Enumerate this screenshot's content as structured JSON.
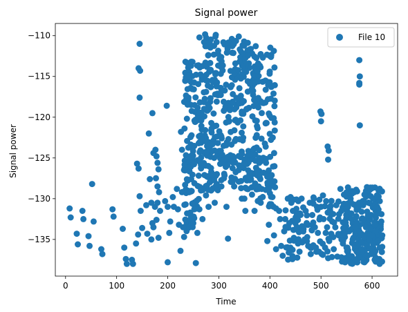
{
  "chart_data": {
    "type": "scatter",
    "title": "Signal power",
    "xlabel": "Time",
    "ylabel": "Signal power",
    "xlim": [
      -20,
      650
    ],
    "ylim": [
      -139.5,
      -108.5
    ],
    "xticks": [
      0,
      100,
      200,
      300,
      400,
      500,
      600
    ],
    "yticks": [
      -135,
      -130,
      -125,
      -120,
      -115,
      -110
    ],
    "grid": false,
    "legend_position": "top-right",
    "marker_color": "#1f77b4",
    "series": [
      {
        "name": "File 10",
        "points": [
          [
            8,
            -131.2
          ],
          [
            10,
            -132.3
          ],
          [
            22,
            -134.3
          ],
          [
            24,
            -135.6
          ],
          [
            33,
            -131.5
          ],
          [
            35,
            -132.5
          ],
          [
            45,
            -134.6
          ],
          [
            47,
            -135.8
          ],
          [
            52,
            -128.2
          ],
          [
            55,
            -132.8
          ],
          [
            70,
            -136.2
          ],
          [
            72,
            -136.8
          ],
          [
            92,
            -131.3
          ],
          [
            94,
            -132.2
          ],
          [
            112,
            -133.7
          ],
          [
            115,
            -136.0
          ],
          [
            118,
            -137.4
          ],
          [
            120,
            -138.0
          ],
          [
            130,
            -137.5
          ],
          [
            132,
            -138.0
          ],
          [
            145,
            -111.0
          ],
          [
            143,
            -114.0
          ],
          [
            146,
            -114.3
          ],
          [
            145,
            -117.6
          ],
          [
            140,
            -125.7
          ],
          [
            143,
            -126.3
          ],
          [
            145,
            -129.7
          ],
          [
            147,
            -131.5
          ],
          [
            138,
            -135.5
          ],
          [
            142,
            -134.4
          ],
          [
            150,
            -133.6
          ],
          [
            158,
            -130.8
          ],
          [
            160,
            -134.3
          ],
          [
            163,
            -122.0
          ],
          [
            165,
            -127.6
          ],
          [
            168,
            -130.5
          ],
          [
            170,
            -119.5
          ],
          [
            172,
            -124.4
          ],
          [
            176,
            -124.0
          ],
          [
            178,
            -124.8
          ],
          [
            180,
            -125.6
          ],
          [
            182,
            -126.4
          ],
          [
            177,
            -127.5
          ],
          [
            180,
            -128.5
          ],
          [
            183,
            -129.2
          ],
          [
            175,
            -131.0
          ],
          [
            170,
            -133.0
          ],
          [
            168,
            -135.0
          ],
          [
            172,
            -133.5
          ],
          [
            178,
            -132.6
          ],
          [
            182,
            -134.8
          ],
          [
            185,
            -131.5
          ],
          [
            180,
            -130.5
          ],
          [
            195,
            -130.3
          ],
          [
            198,
            -118.6
          ],
          [
            200,
            -131.0
          ],
          [
            200,
            -137.8
          ],
          [
            203,
            -134.2
          ],
          [
            205,
            -132.8
          ],
          [
            210,
            -129.8
          ],
          [
            212,
            -131.0
          ],
          [
            218,
            -128.8
          ],
          [
            220,
            -131.3
          ],
          [
            222,
            -133.2
          ],
          [
            225,
            -136.4
          ],
          [
            228,
            -129.2
          ],
          [
            226,
            -121.8
          ],
          [
            228,
            -124.0
          ],
          [
            232,
            -126.5
          ],
          [
            234,
            -128.3
          ],
          [
            230,
            -133.5
          ],
          [
            232,
            -134.7
          ],
          [
            235,
            -130.7
          ],
          [
            238,
            -131.8
          ],
          [
            242,
            -129.2
          ],
          [
            246,
            -127.6
          ],
          [
            248,
            -130.6
          ],
          [
            250,
            -133.0
          ],
          [
            252,
            -131.3
          ],
          [
            255,
            -137.9
          ],
          [
            258,
            -134.2
          ],
          [
            262,
            -131.3
          ],
          [
            265,
            -129.0
          ],
          [
            268,
            -132.5
          ],
          [
            272,
            -127.1
          ],
          [
            275,
            -129.6
          ],
          [
            280,
            -131.0
          ],
          [
            285,
            -129.0
          ],
          [
            288,
            -127.0
          ],
          [
            292,
            -130.5
          ],
          [
            296,
            -128.2
          ],
          [
            305,
            -128.5
          ],
          [
            310,
            -127.5
          ],
          [
            315,
            -131.0
          ],
          [
            318,
            -134.9
          ],
          [
            325,
            -127.4
          ],
          [
            330,
            -128.5
          ],
          [
            345,
            -130.0
          ],
          [
            350,
            -130.0
          ],
          [
            352,
            -131.5
          ],
          [
            360,
            -127.0
          ],
          [
            365,
            -129.5
          ],
          [
            370,
            -131.5
          ],
          [
            378,
            -128.5
          ],
          [
            382,
            -130.5
          ],
          [
            400,
            -128.0
          ],
          [
            402,
            -130.8
          ],
          [
            405,
            -129.8
          ],
          [
            398,
            -133.2
          ],
          [
            395,
            -135.2
          ],
          [
            410,
            -128.6
          ],
          [
            412,
            -131.2
          ],
          [
            408,
            -134.5
          ],
          [
            412,
            -136.2
          ],
          [
            418,
            -131.5
          ],
          [
            420,
            -132.5
          ],
          [
            422,
            -135.8
          ],
          [
            425,
            -137.0
          ],
          [
            428,
            -134.0
          ],
          [
            430,
            -132.5
          ],
          [
            435,
            -130.0
          ],
          [
            438,
            -133.0
          ],
          [
            440,
            -136.0
          ],
          [
            442,
            -130.5
          ],
          [
            445,
            -131.5
          ],
          [
            447,
            -134.8
          ],
          [
            450,
            -133.0
          ],
          [
            452,
            -130.1
          ],
          [
            455,
            -135.5
          ],
          [
            458,
            -136.5
          ],
          [
            460,
            -132.0
          ],
          [
            462,
            -130.0
          ],
          [
            465,
            -133.8
          ],
          [
            468,
            -135.0
          ],
          [
            470,
            -131.5
          ],
          [
            472,
            -133.0
          ],
          [
            475,
            -135.8
          ],
          [
            478,
            -130.5
          ],
          [
            480,
            -136.8
          ],
          [
            483,
            -132.0
          ],
          [
            486,
            -130.0
          ],
          [
            488,
            -133.5
          ],
          [
            490,
            -136.0
          ],
          [
            492,
            -131.0
          ],
          [
            494,
            -134.2
          ],
          [
            496,
            -136.5
          ],
          [
            498,
            -132.3
          ],
          [
            500,
            -131.0
          ],
          [
            499,
            -119.3
          ],
          [
            501,
            -119.6
          ],
          [
            500,
            -120.5
          ],
          [
            505,
            -132.5
          ],
          [
            508,
            -136.0
          ],
          [
            510,
            -130.3
          ],
          [
            512,
            -133.5
          ],
          [
            513,
            -123.6
          ],
          [
            515,
            -124.1
          ],
          [
            514,
            -125.2
          ],
          [
            516,
            -135.2
          ],
          [
            518,
            -131.0
          ],
          [
            522,
            -132.8
          ],
          [
            525,
            -136.2
          ],
          [
            528,
            -133.5
          ],
          [
            530,
            -130.8
          ],
          [
            535,
            -134.5
          ],
          [
            538,
            -128.8
          ],
          [
            540,
            -131.5
          ],
          [
            543,
            -135.5
          ],
          [
            545,
            -129.5
          ],
          [
            548,
            -133.0
          ],
          [
            550,
            -136.0
          ],
          [
            553,
            -131.0
          ],
          [
            555,
            -134.0
          ],
          [
            558,
            -130.0
          ],
          [
            560,
            -132.5
          ],
          [
            562,
            -135.0
          ],
          [
            565,
            -129.2
          ],
          [
            568,
            -133.5
          ],
          [
            570,
            -136.5
          ],
          [
            575,
            -113.0
          ],
          [
            576,
            -115.0
          ],
          [
            575,
            -115.8
          ],
          [
            575,
            -116.0
          ],
          [
            576,
            -121.0
          ],
          [
            572,
            -131.0
          ],
          [
            575,
            -134.0
          ],
          [
            578,
            -130.5
          ],
          [
            580,
            -136.2
          ],
          [
            583,
            -132.5
          ],
          [
            585,
            -129.5
          ],
          [
            588,
            -133.5
          ],
          [
            590,
            -137.0
          ],
          [
            593,
            -130.5
          ],
          [
            595,
            -135.0
          ],
          [
            598,
            -132.0
          ],
          [
            600,
            -134.5
          ],
          [
            602,
            -130.0
          ],
          [
            605,
            -137.5
          ],
          [
            608,
            -133.0
          ],
          [
            610,
            -131.0
          ],
          [
            612,
            -135.2
          ],
          [
            615,
            -136.0
          ],
          [
            618,
            -132.8
          ],
          [
            620,
            -134.5
          ],
          [
            612,
            -129.8
          ],
          [
            605,
            -133.2
          ],
          [
            598,
            -136.8
          ],
          [
            585,
            -137.8
          ],
          [
            570,
            -137.4
          ],
          [
            555,
            -137.6
          ],
          [
            540,
            -137.2
          ]
        ],
        "clusters": [
          {
            "x": [
              232,
              262
            ],
            "y": [
              -134,
              -113
            ],
            "n": 110
          },
          {
            "x": [
              262,
              300
            ],
            "y": [
              -129,
              -109.8
            ],
            "n": 150
          },
          {
            "x": [
              300,
              340
            ],
            "y": [
              -128,
              -109.8
            ],
            "n": 110
          },
          {
            "x": [
              340,
              375
            ],
            "y": [
              -129,
              -110.5
            ],
            "n": 120
          },
          {
            "x": [
              375,
              410
            ],
            "y": [
              -131,
              -111
            ],
            "n": 100
          },
          {
            "x": [
              540,
              620
            ],
            "y": [
              -138,
              -128.5
            ],
            "n": 200
          },
          {
            "x": [
              430,
              540
            ],
            "y": [
              -137.5,
              -129.5
            ],
            "n": 80
          }
        ]
      }
    ]
  }
}
